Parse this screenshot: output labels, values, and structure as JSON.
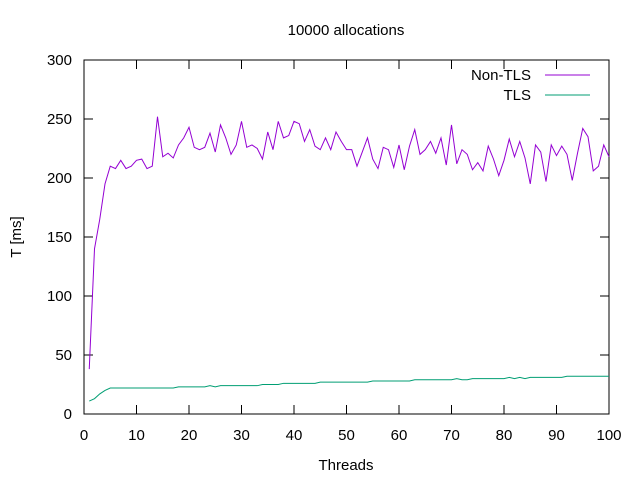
{
  "chart_data": {
    "type": "line",
    "title": "10000 allocations",
    "xlabel": "Threads",
    "ylabel": "T [ms]",
    "xlim": [
      0,
      100
    ],
    "ylim": [
      0,
      300
    ],
    "xticks": [
      0,
      10,
      20,
      30,
      40,
      50,
      60,
      70,
      80,
      90,
      100
    ],
    "yticks": [
      0,
      50,
      100,
      150,
      200,
      250,
      300
    ],
    "grid": false,
    "legend": "top-right",
    "x": [
      1,
      2,
      3,
      4,
      5,
      6,
      7,
      8,
      9,
      10,
      11,
      12,
      13,
      14,
      15,
      16,
      17,
      18,
      19,
      20,
      21,
      22,
      23,
      24,
      25,
      26,
      27,
      28,
      29,
      30,
      31,
      32,
      33,
      34,
      35,
      36,
      37,
      38,
      39,
      40,
      41,
      42,
      43,
      44,
      45,
      46,
      47,
      48,
      49,
      50,
      51,
      52,
      53,
      54,
      55,
      56,
      57,
      58,
      59,
      60,
      61,
      62,
      63,
      64,
      65,
      66,
      67,
      68,
      69,
      70,
      71,
      72,
      73,
      74,
      75,
      76,
      77,
      78,
      79,
      80,
      81,
      82,
      83,
      84,
      85,
      86,
      87,
      88,
      89,
      90,
      91,
      92,
      93,
      94,
      95,
      96,
      97,
      98,
      99,
      100
    ],
    "series": [
      {
        "name": "Non-TLS",
        "color": "#9400d3",
        "values": [
          38,
          140,
          165,
          195,
          210,
          208,
          215,
          208,
          210,
          215,
          216,
          208,
          210,
          252,
          218,
          221,
          217,
          228,
          234,
          243,
          226,
          224,
          226,
          238,
          222,
          245,
          234,
          220,
          228,
          248,
          226,
          228,
          225,
          216,
          239,
          224,
          248,
          234,
          236,
          248,
          246,
          231,
          241,
          227,
          224,
          234,
          224,
          239,
          231,
          224,
          224,
          210,
          222,
          234,
          216,
          208,
          226,
          224,
          209,
          228,
          207,
          227,
          241,
          220,
          224,
          231,
          221,
          234,
          211,
          245,
          212,
          224,
          220,
          207,
          213,
          206,
          227,
          216,
          202,
          215,
          233,
          218,
          231,
          217,
          195,
          228,
          222,
          197,
          228,
          219,
          227,
          220,
          198,
          221,
          242,
          235,
          206,
          210,
          228,
          218
        ]
      },
      {
        "name": "TLS",
        "color": "#009e73",
        "values": [
          11,
          13,
          17,
          20,
          22,
          22,
          22,
          22,
          22,
          22,
          22,
          22,
          22,
          22,
          22,
          22,
          22,
          23,
          23,
          23,
          23,
          23,
          23,
          24,
          23,
          24,
          24,
          24,
          24,
          24,
          24,
          24,
          24,
          25,
          25,
          25,
          25,
          26,
          26,
          26,
          26,
          26,
          26,
          26,
          27,
          27,
          27,
          27,
          27,
          27,
          27,
          27,
          27,
          27,
          28,
          28,
          28,
          28,
          28,
          28,
          28,
          28,
          29,
          29,
          29,
          29,
          29,
          29,
          29,
          29,
          30,
          29,
          29,
          30,
          30,
          30,
          30,
          30,
          30,
          30,
          31,
          30,
          31,
          30,
          31,
          31,
          31,
          31,
          31,
          31,
          31,
          32,
          32,
          32,
          32,
          32,
          32,
          32,
          32,
          32
        ]
      }
    ]
  }
}
